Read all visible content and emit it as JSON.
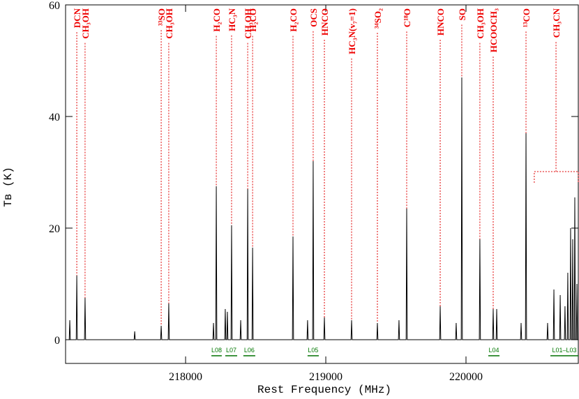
{
  "chart_data": {
    "type": "line",
    "x_label": "Rest Frequency (MHz)",
    "y_label": "Tʙ (K)",
    "xlim": [
      217144,
      220801
    ],
    "ylim": [
      -4.25,
      60
    ],
    "xticks": [
      218000,
      219000,
      220000
    ],
    "yticks": [
      0,
      20,
      40,
      60
    ],
    "series": [
      {
        "color": "#000000",
        "x": [
          217144,
          217170,
          217174,
          217178,
          217220,
          217224,
          217228,
          217279,
          217283,
          217287,
          217633,
          217637,
          217641,
          217822,
          217826,
          217830,
          217876,
          217880,
          217884,
          218195,
          218199,
          218203,
          218215,
          218219,
          218223,
          218279,
          218283,
          218287,
          218294,
          218298,
          218302,
          218324,
          218328,
          218332,
          218389,
          218393,
          218397,
          218439,
          218443,
          218447,
          218474,
          218478,
          218482,
          218762,
          218766,
          218770,
          218866,
          218870,
          218874,
          218906,
          218910,
          218914,
          218986,
          218990,
          218994,
          219180,
          219184,
          219188,
          219364,
          219368,
          219372,
          219518,
          219522,
          219526,
          219573,
          219577,
          219581,
          219812,
          219816,
          219820,
          219926,
          219930,
          219934,
          219966,
          219970,
          219974,
          220095,
          220099,
          220103,
          220190,
          220194,
          220198,
          220215,
          220219,
          220223,
          220389,
          220393,
          220397,
          220424,
          220428,
          220432,
          220578,
          220582,
          220586,
          220623,
          220627,
          220631,
          220668,
          220672,
          220676,
          220702,
          220706,
          220710,
          220722,
          220726,
          220730,
          220742,
          220746,
          220750,
          220757,
          220761,
          220765,
          220772,
          220776,
          220780,
          220787,
          220791,
          220795,
          220801
        ],
        "values": [
          0,
          0,
          3.5,
          0,
          0,
          11.5,
          0,
          0,
          7.5,
          0,
          0,
          1.5,
          0,
          0,
          2.5,
          0,
          0,
          6.5,
          0,
          0,
          3,
          0,
          0,
          27.5,
          0,
          0,
          5.5,
          0,
          0,
          5,
          0,
          0,
          20.5,
          0,
          0,
          3.5,
          0,
          0,
          27,
          0,
          0,
          16.5,
          0,
          0,
          18.5,
          0,
          0,
          3.5,
          0,
          0,
          32,
          0,
          0,
          4,
          0,
          0,
          3.5,
          0,
          0,
          3,
          0,
          0,
          3.5,
          0,
          0,
          23.5,
          0,
          0,
          6,
          0,
          0,
          3,
          0,
          0,
          47,
          0,
          0,
          18,
          0,
          0,
          5.5,
          0,
          0,
          5.5,
          0,
          0,
          3,
          0,
          0,
          37,
          0,
          0,
          3,
          0,
          0,
          9,
          0,
          0,
          8,
          0,
          0,
          6,
          0,
          0,
          12,
          0,
          0,
          20,
          0,
          0,
          18,
          0,
          0,
          25.5,
          0,
          0,
          10,
          0,
          0
        ]
      }
    ],
    "annotation_color": "#e00000",
    "annotations": [
      {
        "label": "DCN",
        "x": 217224
      },
      {
        "label": "CH₃OH",
        "x": 217283
      },
      {
        "label": "³³SO",
        "x": 217826
      },
      {
        "label": "CH₃OH",
        "x": 217880
      },
      {
        "label": "H₂CO",
        "x": 218219
      },
      {
        "label": "HC₃N",
        "x": 218328
      },
      {
        "label": "CH₃OH",
        "x": 218443
      },
      {
        "label": "H₂CO",
        "x": 218478
      },
      {
        "label": "H₂CO",
        "x": 218766
      },
      {
        "label": "OCS",
        "x": 218910
      },
      {
        "label": "HNCO",
        "x": 218990
      },
      {
        "label": "HC₃N(v₇=1)",
        "x": 219184
      },
      {
        "label": "³⁴SO₂",
        "x": 219368
      },
      {
        "label": "C¹⁸O",
        "x": 219577
      },
      {
        "label": "HNCO",
        "x": 219816
      },
      {
        "label": "SO",
        "x": 219970
      },
      {
        "label": "CH₃OH",
        "x": 220099
      },
      {
        "label": "HCOOCH₃",
        "x": 220194
      },
      {
        "label": "¹³CO",
        "x": 220428
      },
      {
        "label": "CH₃CN",
        "x": 220642,
        "span": [
          220487,
          220801
        ]
      }
    ],
    "range_color": "#007000",
    "ranges": [
      {
        "label": "L08",
        "from": 218184,
        "to": 218258
      },
      {
        "label": "L07",
        "from": 218283,
        "to": 218368
      },
      {
        "label": "L06",
        "from": 218412,
        "to": 218497
      },
      {
        "label": "L05",
        "from": 218870,
        "to": 218950
      },
      {
        "label": "L04",
        "from": 220159,
        "to": 220239
      },
      {
        "label": "L01–L03",
        "from": 220602,
        "to": 220801
      }
    ]
  }
}
